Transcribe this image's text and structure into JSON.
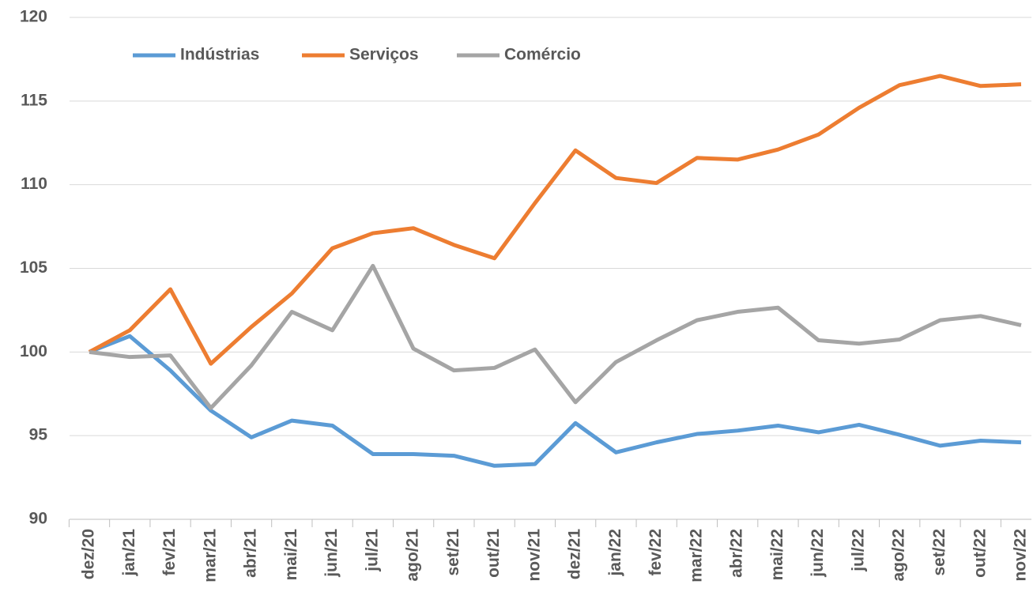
{
  "chart_data": {
    "type": "line",
    "categories": [
      "dez/20",
      "jan/21",
      "fev/21",
      "mar/21",
      "abr/21",
      "mai/21",
      "jun/21",
      "jul/21",
      "ago/21",
      "set/21",
      "out/21",
      "nov/21",
      "dez/21",
      "jan/22",
      "fev/22",
      "mar/22",
      "abr/22",
      "mai/22",
      "jun/22",
      "jul/22",
      "ago/22",
      "set/22",
      "out/22",
      "nov/22"
    ],
    "series": [
      {
        "name": "Indústrias",
        "color": "#5b9bd5",
        "values": [
          100,
          100.95,
          98.9,
          96.5,
          94.9,
          95.9,
          95.6,
          93.9,
          93.9,
          93.8,
          93.2,
          93.3,
          95.75,
          94.0,
          94.6,
          95.1,
          95.3,
          95.6,
          95.2,
          95.65,
          95.05,
          94.4,
          94.7,
          94.6
        ]
      },
      {
        "name": "Serviços",
        "color": "#ed7d31",
        "values": [
          100,
          101.3,
          103.75,
          99.3,
          101.5,
          103.5,
          106.2,
          107.1,
          107.4,
          106.4,
          105.6,
          108.9,
          112.05,
          110.4,
          110.1,
          111.6,
          111.5,
          112.1,
          113.0,
          114.6,
          115.95,
          116.5,
          115.9,
          116.0
        ]
      },
      {
        "name": "Comércio",
        "color": "#a5a5a5",
        "values": [
          100,
          99.7,
          99.8,
          96.65,
          99.2,
          102.4,
          101.3,
          105.15,
          100.2,
          98.9,
          99.05,
          100.15,
          97.0,
          99.4,
          100.7,
          101.9,
          102.4,
          102.65,
          100.7,
          100.5,
          100.75,
          101.9,
          102.15,
          101.6
        ]
      }
    ],
    "ylim": [
      90,
      120
    ],
    "yticks": [
      90,
      95,
      100,
      105,
      110,
      115,
      120
    ],
    "grid": true,
    "legend": "top"
  }
}
